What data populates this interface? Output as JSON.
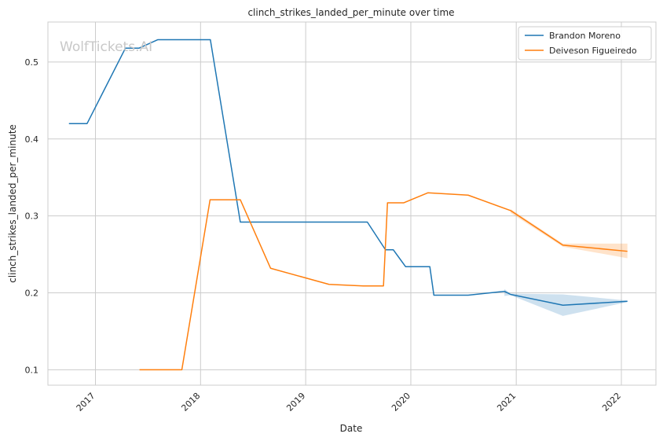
{
  "chart_data": {
    "type": "line",
    "title": "clinch_strikes_landed_per_minute over time",
    "xlabel": "Date",
    "ylabel": "clinch_strikes_landed_per_minute",
    "watermark": "WolfTickets.AI",
    "x_ticks": [
      "2017",
      "2018",
      "2019",
      "2020",
      "2021",
      "2022"
    ],
    "y_ticks": [
      "0.1",
      "0.2",
      "0.3",
      "0.4",
      "0.5"
    ],
    "xlim": [
      "2016-07-20",
      "2022-05-01"
    ],
    "ylim": [
      0.08,
      0.552
    ],
    "grid": true,
    "legend_position": "top-right",
    "series": [
      {
        "name": "Brandon Moreno",
        "color": "#1f77b4",
        "points": [
          [
            "2016-10-01",
            0.42
          ],
          [
            "2016-12-03",
            0.42
          ],
          [
            "2017-04-15",
            0.518
          ],
          [
            "2017-06-01",
            0.518
          ],
          [
            "2017-08-05",
            0.529
          ],
          [
            "2017-10-01",
            0.529
          ],
          [
            "2018-01-01",
            0.529
          ],
          [
            "2018-02-04",
            0.529
          ],
          [
            "2018-05-19",
            0.292
          ],
          [
            "2019-08-03",
            0.292
          ],
          [
            "2019-10-05",
            0.256
          ],
          [
            "2019-11-01",
            0.256
          ],
          [
            "2019-12-14",
            0.234
          ],
          [
            "2020-03-07",
            0.234
          ],
          [
            "2020-03-21",
            0.197
          ],
          [
            "2020-07-18",
            0.197
          ],
          [
            "2020-11-21",
            0.202
          ],
          [
            "2020-12-12",
            0.198
          ],
          [
            "2021-06-12",
            0.184
          ],
          [
            "2022-01-22",
            0.189
          ]
        ],
        "band": [
          [
            "2020-11-21",
            0.205,
            0.196
          ],
          [
            "2020-12-12",
            0.199,
            0.197
          ],
          [
            "2021-06-12",
            0.198,
            0.17
          ],
          [
            "2022-01-22",
            0.19,
            0.188
          ]
        ]
      },
      {
        "name": "Deiveson Figueiredo",
        "color": "#ff7f0e",
        "points": [
          [
            "2017-06-03",
            0.1
          ],
          [
            "2017-10-28",
            0.1
          ],
          [
            "2018-02-03",
            0.321
          ],
          [
            "2018-05-19",
            0.321
          ],
          [
            "2018-09-01",
            0.232
          ],
          [
            "2019-03-23",
            0.211
          ],
          [
            "2019-07-20",
            0.209
          ],
          [
            "2019-09-28",
            0.209
          ],
          [
            "2019-10-12",
            0.317
          ],
          [
            "2019-12-07",
            0.317
          ],
          [
            "2020-02-29",
            0.33
          ],
          [
            "2020-07-18",
            0.327
          ],
          [
            "2020-12-12",
            0.307
          ],
          [
            "2021-06-12",
            0.262
          ],
          [
            "2022-01-22",
            0.254
          ]
        ],
        "band": [
          [
            "2020-12-12",
            0.309,
            0.304
          ],
          [
            "2021-06-12",
            0.264,
            0.26
          ],
          [
            "2022-01-22",
            0.264,
            0.245
          ]
        ]
      }
    ]
  }
}
